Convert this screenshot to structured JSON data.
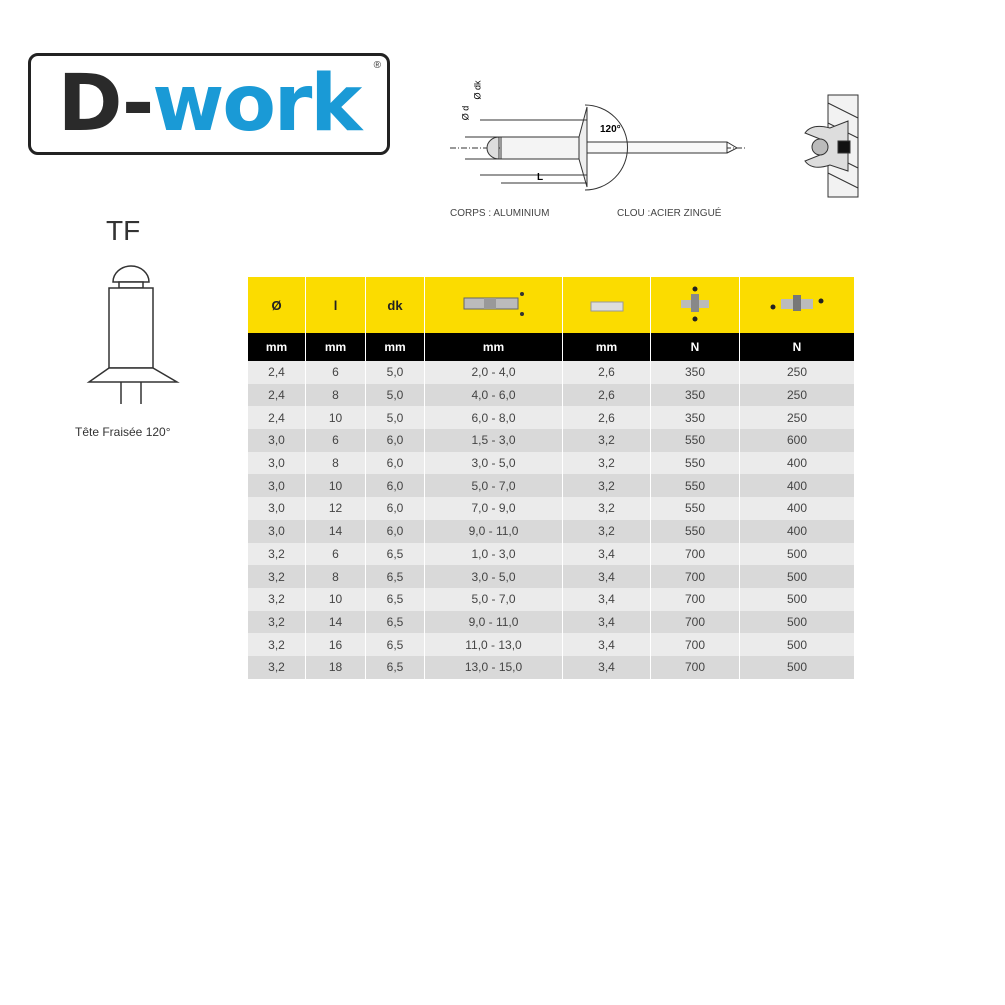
{
  "logo": {
    "text_dark": "D-",
    "text_blue": "work",
    "registered": "®",
    "blue": "#1a9ad6"
  },
  "diagram": {
    "label_od": "Ø d",
    "label_odk": "Ø dk",
    "label_angle": "120°",
    "label_L": "L",
    "body_material": "CORPS : ALUMINIUM",
    "nail_material": "CLOU :ACIER ZINGUÉ"
  },
  "rivet_type": {
    "code": "TF",
    "caption": "Tête Fraisée 120°"
  },
  "table": {
    "header_symbols": [
      "Ø",
      "l",
      "dk",
      "grip-range-icon",
      "drill-bit-icon",
      "shear-strength-icon",
      "tensile-strength-icon"
    ],
    "units": [
      "mm",
      "mm",
      "mm",
      "mm",
      "mm",
      "N",
      "N"
    ],
    "rows": [
      [
        "2,4",
        "6",
        "5,0",
        "2,0 - 4,0",
        "2,6",
        "350",
        "250"
      ],
      [
        "2,4",
        "8",
        "5,0",
        "4,0 - 6,0",
        "2,6",
        "350",
        "250"
      ],
      [
        "2,4",
        "10",
        "5,0",
        "6,0 - 8,0",
        "2,6",
        "350",
        "250"
      ],
      [
        "3,0",
        "6",
        "6,0",
        "1,5 - 3,0",
        "3,2",
        "550",
        "600"
      ],
      [
        "3,0",
        "8",
        "6,0",
        "3,0 - 5,0",
        "3,2",
        "550",
        "400"
      ],
      [
        "3,0",
        "10",
        "6,0",
        "5,0 - 7,0",
        "3,2",
        "550",
        "400"
      ],
      [
        "3,0",
        "12",
        "6,0",
        "7,0 - 9,0",
        "3,2",
        "550",
        "400"
      ],
      [
        "3,0",
        "14",
        "6,0",
        "9,0 - 11,0",
        "3,2",
        "550",
        "400"
      ],
      [
        "3,2",
        "6",
        "6,5",
        "1,0 - 3,0",
        "3,4",
        "700",
        "500"
      ],
      [
        "3,2",
        "8",
        "6,5",
        "3,0 - 5,0",
        "3,4",
        "700",
        "500"
      ],
      [
        "3,2",
        "10",
        "6,5",
        "5,0 - 7,0",
        "3,4",
        "700",
        "500"
      ],
      [
        "3,2",
        "14",
        "6,5",
        "9,0 - 11,0",
        "3,4",
        "700",
        "500"
      ],
      [
        "3,2",
        "16",
        "6,5",
        "11,0 - 13,0",
        "3,4",
        "700",
        "500"
      ],
      [
        "3,2",
        "18",
        "6,5",
        "13,0 - 15,0",
        "3,4",
        "700",
        "500"
      ]
    ]
  }
}
